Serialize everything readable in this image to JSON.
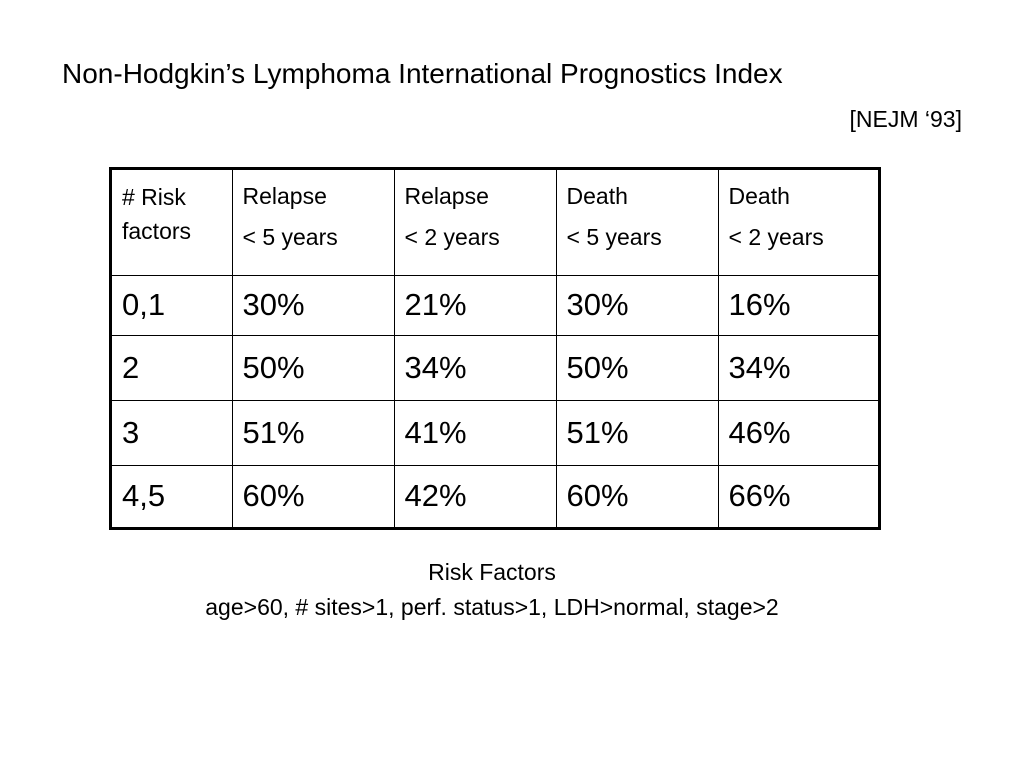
{
  "slide": {
    "title": "Non-Hodgkin’s Lymphoma International Prognostics Index",
    "citation": "[NEJM ‘93]"
  },
  "table": {
    "headers": [
      {
        "line1": "# Risk",
        "line2": "factors"
      },
      {
        "line1": "Relapse",
        "line2": "< 5 years"
      },
      {
        "line1": "Relapse",
        "line2": "< 2 years"
      },
      {
        "line1": "Death",
        "line2": "< 5 years"
      },
      {
        "line1": "Death",
        "line2": "< 2 years"
      }
    ],
    "rows": [
      [
        "0,1",
        "30%",
        "21%",
        "30%",
        "16%"
      ],
      [
        "2",
        "50%",
        "34%",
        "50%",
        "34%"
      ],
      [
        "3",
        "51%",
        "41%",
        "51%",
        "46%"
      ],
      [
        "4,5",
        "60%",
        "42%",
        "60%",
        "66%"
      ]
    ]
  },
  "footnote": {
    "heading": "Risk Factors",
    "factors": "age>60, # sites>1, perf. status>1, LDH>normal, stage>2"
  }
}
